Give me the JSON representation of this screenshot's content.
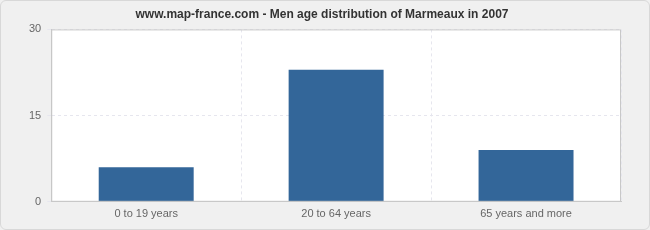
{
  "chart_data": {
    "type": "bar",
    "title": "www.map-france.com - Men age distribution of Marmeaux in 2007",
    "categories": [
      "0 to 19 years",
      "20 to 64 years",
      "65 years and more"
    ],
    "values": [
      6,
      23,
      9
    ],
    "color": "#336699",
    "ylim": [
      0,
      30
    ],
    "yticks": [
      0,
      15,
      30
    ],
    "grid": true
  }
}
